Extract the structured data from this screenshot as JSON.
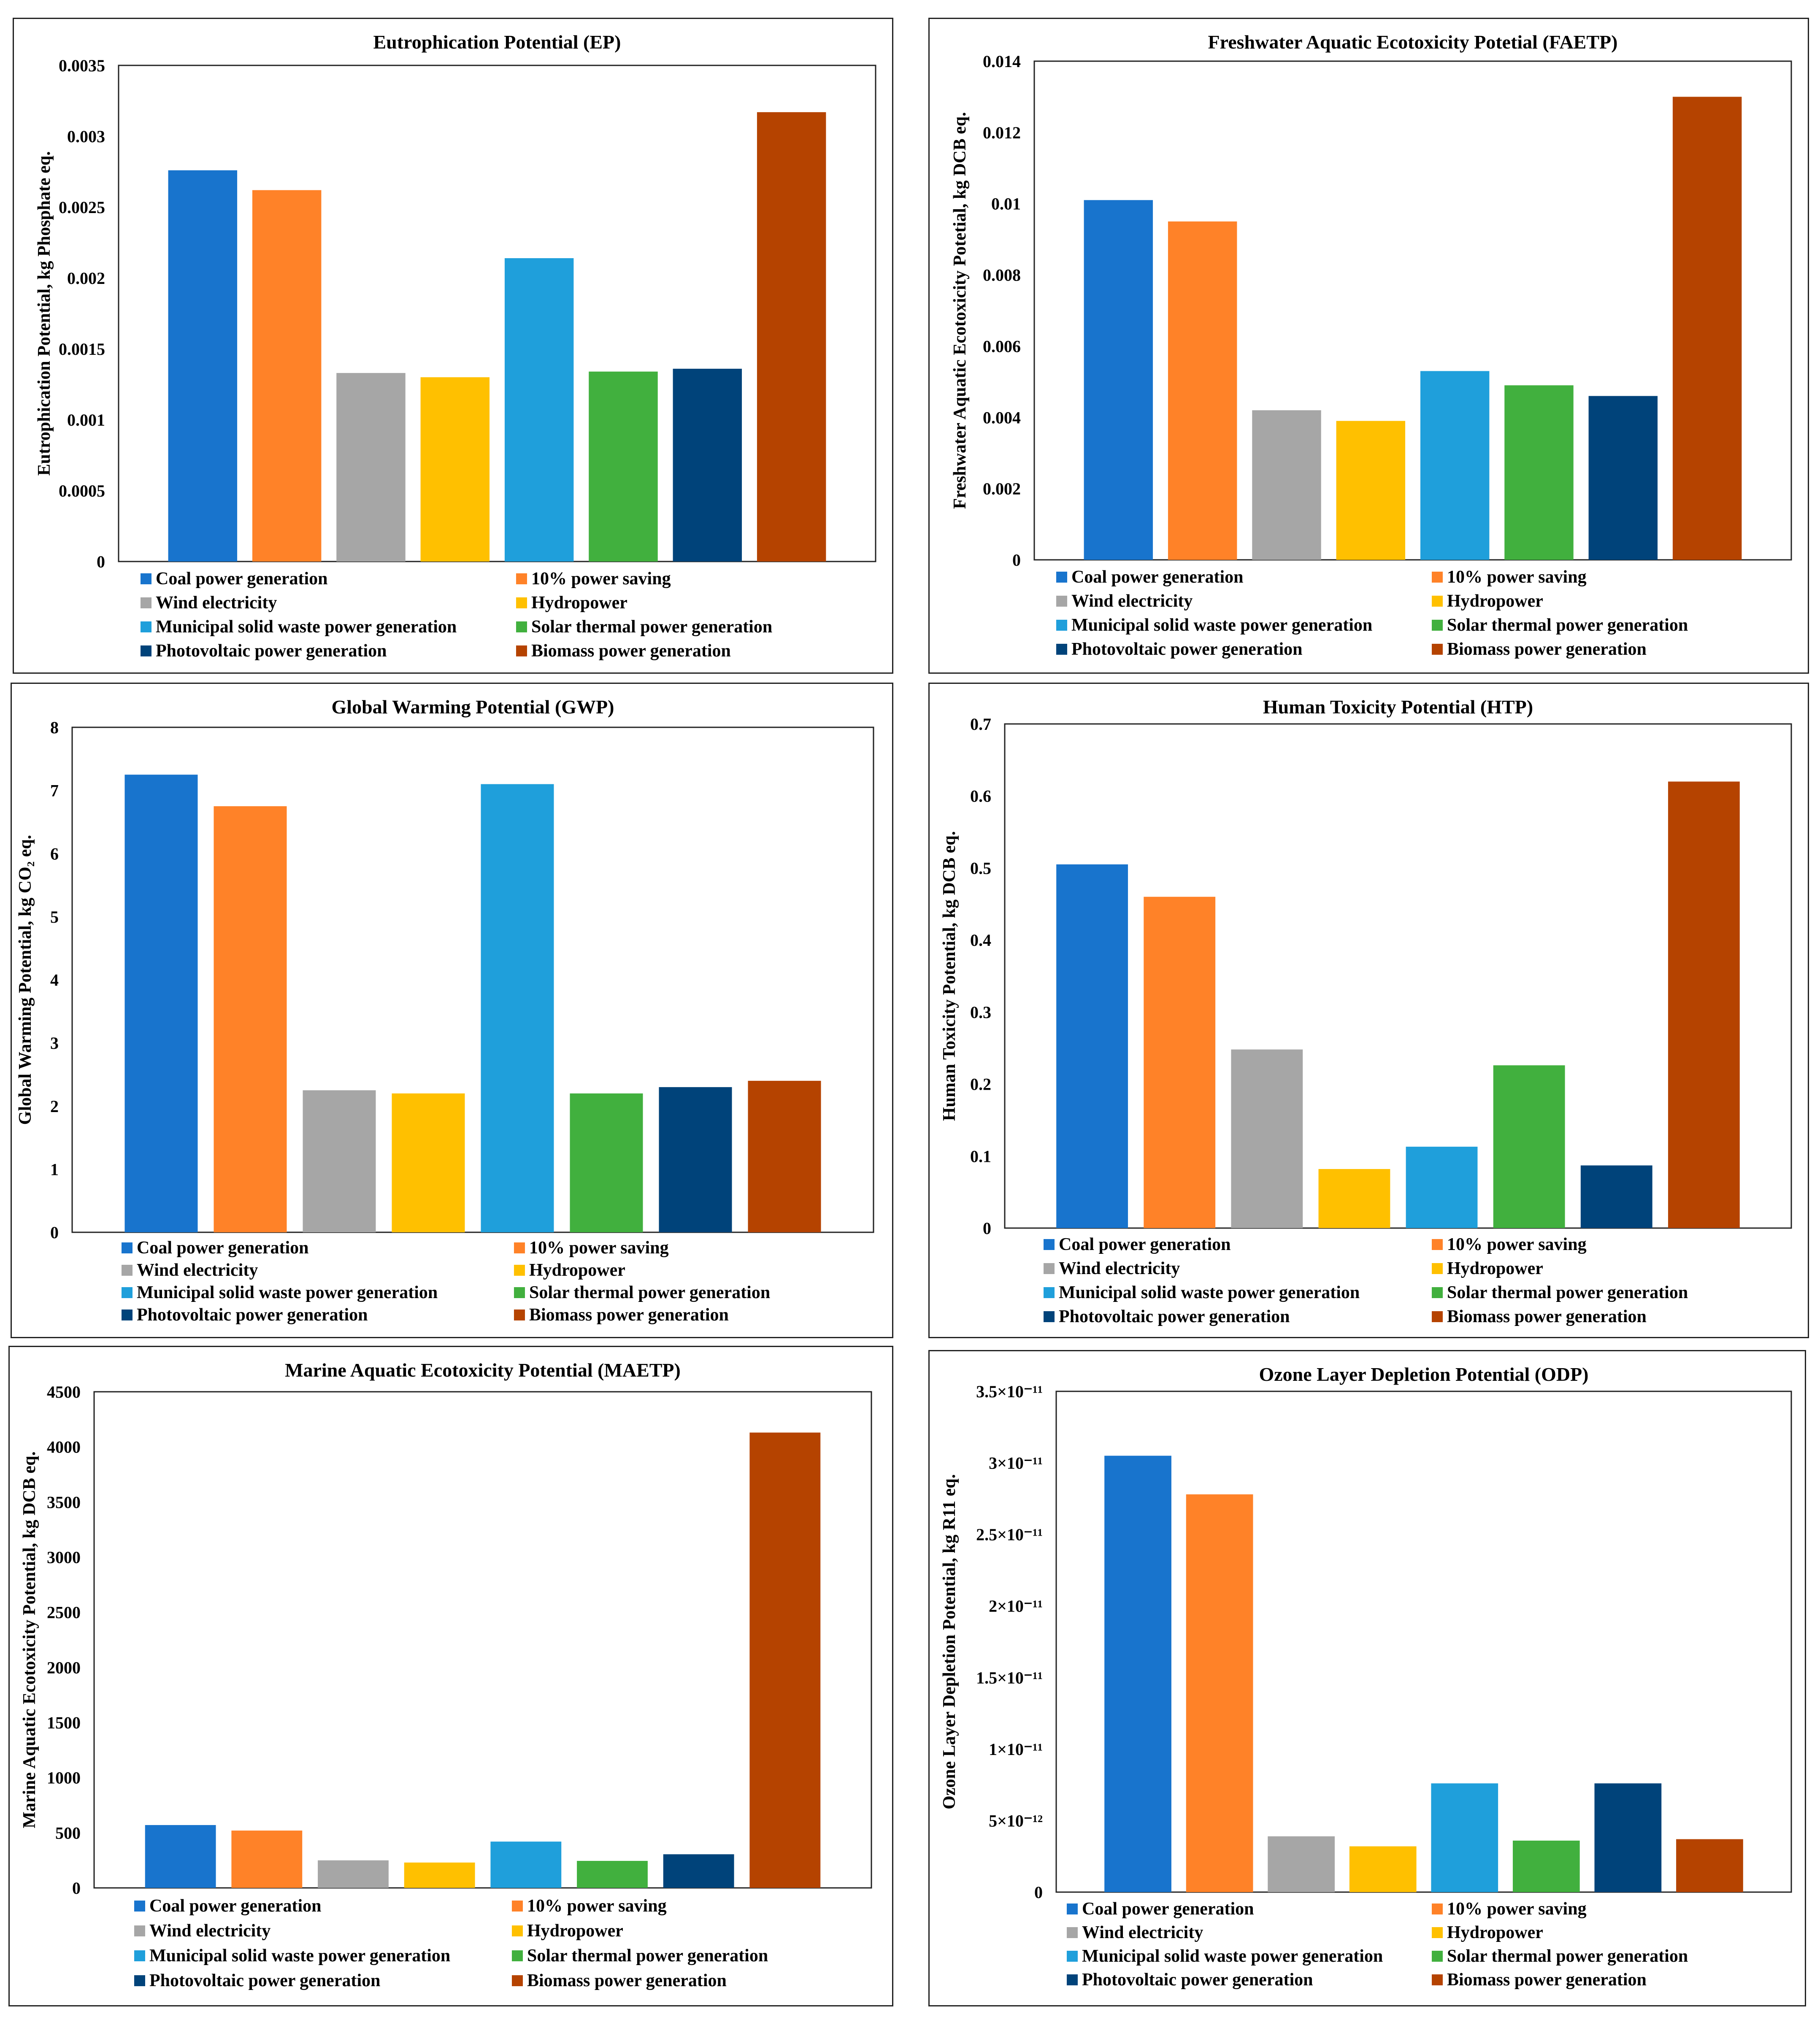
{
  "colors": {
    "Coal power generation": "#1874CD",
    "10% power saving": "#FF8228",
    "Wind electricity": "#A6A6A6",
    "Hydropower": "#FFC000",
    "Municipal solid waste power generation": "#1F9FDB",
    "Solar thermal power generation": "#41B03E",
    "Photovoltaic power generation": "#00437A",
    "Biomass power generation": "#B54300"
  },
  "chart_data": [
    {
      "type": "bar",
      "title": "Eutrophication Potential (EP)",
      "ylabel": "Eutrophication Potential, kg Phosphate eq.",
      "categories": [
        "Coal power generation",
        "10% power saving",
        "Wind electricity",
        "Hydropower",
        "Municipal solid waste power generation",
        "Solar thermal power generation",
        "Photovoltaic power generation",
        "Biomass power generation"
      ],
      "values": [
        0.00276,
        0.00262,
        0.00133,
        0.0013,
        0.00214,
        0.00134,
        0.00136,
        0.00317
      ],
      "ylim": [
        0,
        0.0035
      ],
      "yticks": [
        0,
        0.0005,
        0.001,
        0.0015,
        0.002,
        0.0025,
        0.003,
        0.0035
      ],
      "ytick_labels": [
        "0",
        "0.0005",
        "0.001",
        "0.0015",
        "0.002",
        "0.0025",
        "0.003",
        "0.0035"
      ],
      "legend": "bottom",
      "grid": false
    },
    {
      "type": "bar",
      "title": "Freshwater Aquatic Ecotoxicity Potetial (FAETP)",
      "ylabel": "Freshwater Aquatic Ecotoxicity Potetial, kg DCB eq.",
      "categories": [
        "Coal power generation",
        "10% power saving",
        "Wind electricity",
        "Hydropower",
        "Municipal solid waste power generation",
        "Solar thermal power generation",
        "Photovoltaic power generation",
        "Biomass power generation"
      ],
      "values": [
        0.0101,
        0.0095,
        0.0042,
        0.0039,
        0.0053,
        0.0049,
        0.0046,
        0.013
      ],
      "ylim": [
        0,
        0.014
      ],
      "yticks": [
        0,
        0.002,
        0.004,
        0.006,
        0.008,
        0.01,
        0.012,
        0.014
      ],
      "ytick_labels": [
        "0",
        "0.002",
        "0.004",
        "0.006",
        "0.008",
        "0.01",
        "0.012",
        "0.014"
      ],
      "legend": "bottom",
      "grid": false
    },
    {
      "type": "bar",
      "title": "Global Warming Potential (GWP)",
      "ylabel": "Global Warming Potential, kg CO₂ eq.",
      "categories": [
        "Coal power generation",
        "10% power saving",
        "Wind electricity",
        "Hydropower",
        "Municipal solid waste power generation",
        "Solar thermal power generation",
        "Photovoltaic power generation",
        "Biomass power generation"
      ],
      "values": [
        7.25,
        6.75,
        2.25,
        2.2,
        7.1,
        2.2,
        2.3,
        2.4
      ],
      "ylim": [
        0,
        8
      ],
      "yticks": [
        0,
        1,
        2,
        3,
        4,
        5,
        6,
        7,
        8
      ],
      "ytick_labels": [
        "0",
        "1",
        "2",
        "3",
        "4",
        "5",
        "6",
        "7",
        "8"
      ],
      "legend": "bottom",
      "grid": false
    },
    {
      "type": "bar",
      "title": "Human Toxicity Potential (HTP)",
      "ylabel": "Human Toxicity Potential, kg DCB eq.",
      "categories": [
        "Coal power generation",
        "10% power saving",
        "Wind electricity",
        "Hydropower",
        "Municipal solid waste power generation",
        "Solar thermal power generation",
        "Photovoltaic power generation",
        "Biomass power generation"
      ],
      "values": [
        0.505,
        0.46,
        0.248,
        0.082,
        0.113,
        0.226,
        0.087,
        0.62
      ],
      "ylim": [
        0,
        0.7
      ],
      "yticks": [
        0,
        0.1,
        0.2,
        0.3,
        0.4,
        0.5,
        0.6,
        0.7
      ],
      "ytick_labels": [
        "0",
        "0.1",
        "0.2",
        "0.3",
        "0.4",
        "0.5",
        "0.6",
        "0.7"
      ],
      "legend": "bottom",
      "grid": false
    },
    {
      "type": "bar",
      "title": "Marine Aquatic Ecotoxicity Potential (MAETP)",
      "ylabel": "Marine Aquatic Ecotoxicity Potential, kg DCB eq.",
      "categories": [
        "Coal power generation",
        "10% power saving",
        "Wind electricity",
        "Hydropower",
        "Municipal solid waste power generation",
        "Solar thermal power generation",
        "Photovoltaic power generation",
        "Biomass power generation"
      ],
      "values": [
        570,
        520,
        250,
        230,
        420,
        245,
        305,
        4130
      ],
      "ylim": [
        0,
        4500
      ],
      "yticks": [
        0,
        500,
        1000,
        1500,
        2000,
        2500,
        3000,
        3500,
        4000,
        4500
      ],
      "ytick_labels": [
        "0",
        "500",
        "1000",
        "1500",
        "2000",
        "2500",
        "3000",
        "3500",
        "4000",
        "4500"
      ],
      "legend": "bottom",
      "grid": false
    },
    {
      "type": "bar",
      "title": "Ozone Layer Depletion Potential (ODP)",
      "ylabel": "Ozone Layer Depletion Potential, kg R11 eq.",
      "categories": [
        "Coal power generation",
        "10% power saving",
        "Wind electricity",
        "Hydropower",
        "Municipal solid waste power generation",
        "Solar thermal power generation",
        "Photovoltaic power generation",
        "Biomass power generation"
      ],
      "values": [
        3.05e-11,
        2.78e-11,
        3.9e-12,
        3.2e-12,
        7.6e-12,
        3.6e-12,
        7.6e-12,
        3.7e-12
      ],
      "ylim": [
        0,
        3.5e-11
      ],
      "yticks": [
        0,
        5e-12,
        1e-11,
        1.5e-11,
        2e-11,
        2.5e-11,
        3e-11,
        3.5e-11
      ],
      "ytick_labels": [
        "0",
        "5×10⁻¹²",
        "1×10⁻¹¹",
        "1.5×10⁻¹¹",
        "2×10⁻¹¹",
        "2.5×10⁻¹¹",
        "3×10⁻¹¹",
        "3.5×10⁻¹¹"
      ],
      "legend": "bottom",
      "grid": false
    }
  ]
}
